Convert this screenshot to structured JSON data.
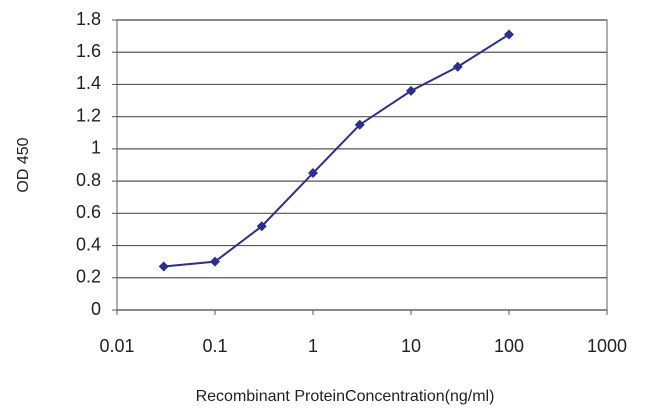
{
  "chart_data": {
    "type": "line",
    "x_label": "Recombinant ProteinConcentration(ng/ml)",
    "y_label": "OD 450",
    "x": [
      0.03,
      0.1,
      0.3,
      1,
      3,
      10,
      30,
      100
    ],
    "values": [
      0.27,
      0.3,
      0.52,
      0.85,
      1.15,
      1.36,
      1.51,
      1.71
    ],
    "color": "#2e2e8c",
    "xscale": "log",
    "xlim": [
      0.01,
      1000
    ],
    "xticks": [
      0.01,
      0.1,
      1,
      10,
      100,
      1000
    ],
    "ylim": [
      0,
      1.8
    ],
    "yticks": [
      0,
      0.2,
      0.4,
      0.6,
      0.8,
      1,
      1.2,
      1.4,
      1.6,
      1.8
    ],
    "grid": true
  }
}
